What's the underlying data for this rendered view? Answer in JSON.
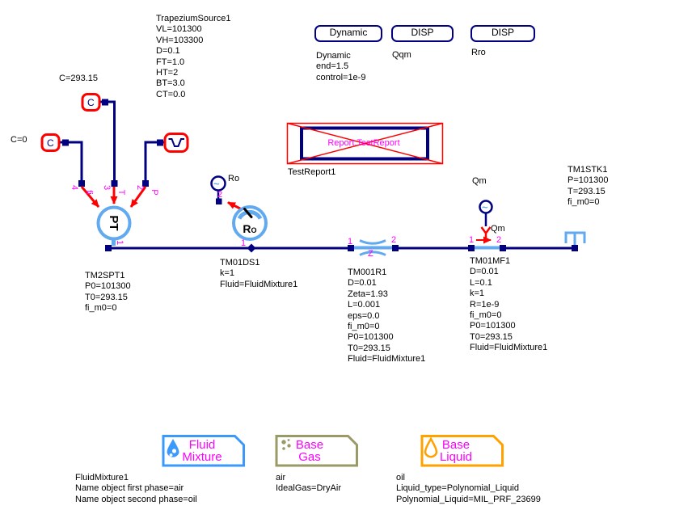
{
  "colors": {
    "navy": "#000080",
    "light_blue": "#62aaf0",
    "red": "#ff0000",
    "magenta": "#ff00ff",
    "fluid_blue": "#3b99fc",
    "gas_olive": "#9a9a66",
    "liquid_orange": "#ffa200"
  },
  "toolbar": {
    "dynamic_button": {
      "label": "Dynamic"
    },
    "disp1": {
      "label": "DISP",
      "caption": "Qqm"
    },
    "disp2": {
      "label": "DISP",
      "caption": "Rro"
    },
    "sim_settings": [
      "Dynamic",
      "end=1.5",
      "control=1e-9"
    ]
  },
  "report": {
    "cross_label": "Report.TestReport",
    "caption": "TestReport1"
  },
  "sources": {
    "c_upper": {
      "glyph": "C",
      "label": "C=293.15"
    },
    "c_lower": {
      "glyph": "C",
      "label": "C=0"
    },
    "trapezium": {
      "params": [
        "TrapeziumSource1",
        "VL=101300",
        "VH=103300",
        "D=0.1",
        "FT=1.0",
        "HT=2",
        "BT=3.0",
        "CT=0.0"
      ]
    }
  },
  "pt_source": {
    "glyph": "PT",
    "ports": {
      "p4": "4",
      "fi": "fi",
      "p3": "3",
      "t": "T",
      "p2": "2",
      "p": "P",
      "p1": "1"
    },
    "params": [
      "TM2SPT1",
      "P0=101300",
      "T0=293.15",
      "fi_m0=0"
    ]
  },
  "density_display": {
    "glyph_main": "R",
    "glyph_sub": "O",
    "sensor_glyph": "~",
    "sensor_label": "Ro",
    "ports": {
      "p1": "1",
      "p2": "2"
    },
    "params": [
      "TM01DS1",
      "k=1",
      "Fluid=FluidMixture1"
    ]
  },
  "restrictor": {
    "ports": {
      "p1": "1",
      "p2": "2",
      "z": "Z"
    },
    "params": [
      "TM001R1",
      "D=0.01",
      "Zeta=1.93",
      "L=0.001",
      "eps=0.0",
      "fi_m0=0",
      "P0=101300",
      "T0=293.15",
      "Fluid=FluidMixture1"
    ]
  },
  "mass_flow": {
    "sensor_glyph": "~",
    "top_label": "Qm",
    "sensor_label": "Qm",
    "ports": {
      "p1": "1",
      "p2": "2"
    },
    "params": [
      "TM01MF1",
      "D=0.01",
      "L=0.1",
      "k=1",
      "R=1e-9",
      "fi_m0=0",
      "P0=101300",
      "T0=293.15",
      "Fluid=FluidMixture1"
    ]
  },
  "tank": {
    "params": [
      "TM1STK1",
      "P=101300",
      "T=293.15",
      "fi_m0=0"
    ]
  },
  "fluid_mixture": {
    "title": [
      "Fluid",
      "Mixture"
    ],
    "params": [
      "FluidMixture1",
      "Name object first phase=air",
      "Name object second phase=oil"
    ]
  },
  "base_gas": {
    "title": [
      "Base",
      "Gas"
    ],
    "params": [
      "air",
      "IdealGas=DryAir"
    ]
  },
  "base_liquid": {
    "title": [
      "Base",
      "Liquid"
    ],
    "params": [
      "oil",
      "Liquid_type=Polynomial_Liquid",
      "Polynomial_Liquid=MIL_PRF_23699"
    ]
  }
}
